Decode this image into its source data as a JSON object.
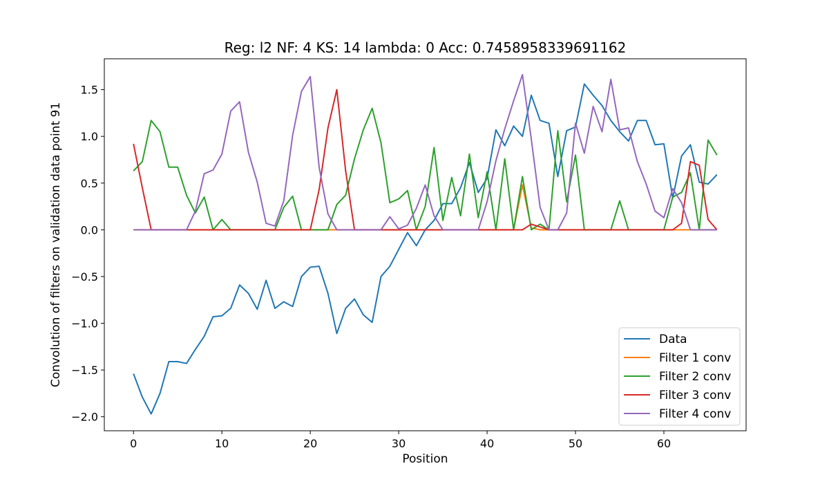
{
  "chart_data": {
    "type": "line",
    "title": "Reg: l2  NF: 4  KS: 14  lambda: 0 Acc: 0.7458958339691162",
    "xlabel": "Position",
    "ylabel": "Convolution of filters on validation data point 91",
    "xlim": [
      -3.3,
      69.3
    ],
    "ylim": [
      -2.15,
      1.83
    ],
    "xticks": [
      0,
      10,
      20,
      30,
      40,
      50,
      60
    ],
    "yticks": [
      -2.0,
      -1.5,
      -1.0,
      -0.5,
      0.0,
      0.5,
      1.0,
      1.5
    ],
    "ytick_labels": [
      "−2.0",
      "−1.5",
      "−1.0",
      "−0.5",
      "0.0",
      "0.5",
      "1.0",
      "1.5"
    ],
    "grid": false,
    "legend_position": "lower-right",
    "series": [
      {
        "name": "Data",
        "color": "#1f77b4",
        "values": [
          -1.54,
          -1.79,
          -1.97,
          -1.75,
          -1.41,
          -1.41,
          -1.43,
          -1.28,
          -1.14,
          -0.93,
          -0.92,
          -0.84,
          -0.59,
          -0.68,
          -0.85,
          -0.54,
          -0.84,
          -0.77,
          -0.82,
          -0.5,
          -0.4,
          -0.39,
          -0.68,
          -1.11,
          -0.84,
          -0.74,
          -0.91,
          -0.99,
          -0.5,
          -0.39,
          -0.21,
          -0.03,
          -0.17,
          0.0,
          0.1,
          0.28,
          0.28,
          0.45,
          0.72,
          0.4,
          0.55,
          1.07,
          0.9,
          1.11,
          1.0,
          1.44,
          1.17,
          1.14,
          0.57,
          1.06,
          1.1,
          1.56,
          1.44,
          1.33,
          1.17,
          1.05,
          0.95,
          1.17,
          1.17,
          0.91,
          0.92,
          0.34,
          0.79,
          0.91,
          0.51,
          0.49,
          0.59
        ]
      },
      {
        "name": "Filter 1 conv",
        "color": "#ff7f0e",
        "values": [
          0,
          0,
          0,
          0,
          0,
          0,
          0,
          0,
          0,
          0,
          0,
          0,
          0,
          0,
          0,
          0,
          0,
          0,
          0,
          0,
          0,
          0,
          0,
          0,
          0,
          0,
          0,
          0,
          0,
          0,
          0,
          0,
          0,
          0,
          0,
          0,
          0,
          0,
          0,
          0,
          0,
          0,
          0,
          0,
          0.48,
          0.02,
          0,
          0,
          0,
          0,
          0,
          0,
          0,
          0,
          0,
          0,
          0,
          0,
          0,
          0,
          0,
          0,
          0,
          0,
          0,
          0,
          0
        ]
      },
      {
        "name": "Filter 2 conv",
        "color": "#2ca02c",
        "values": [
          0.63,
          0.73,
          1.17,
          1.05,
          0.67,
          0.67,
          0.37,
          0.18,
          0.35,
          0,
          0.11,
          0,
          0,
          0,
          0,
          0,
          0,
          0.24,
          0.36,
          0,
          0,
          0,
          0,
          0.27,
          0.37,
          0.76,
          1.07,
          1.3,
          0.93,
          0.29,
          0.33,
          0.42,
          0,
          0.25,
          0.88,
          0.1,
          0.56,
          0.15,
          0.81,
          0.13,
          0.62,
          0,
          0.76,
          0,
          0.57,
          0,
          0.06,
          0,
          1.06,
          0.3,
          0.8,
          0,
          0,
          0,
          0,
          0.31,
          0,
          0,
          0,
          0,
          0,
          0.35,
          0.4,
          0.61,
          0,
          0.96,
          0.8
        ]
      },
      {
        "name": "Filter 3 conv",
        "color": "#d62728",
        "values": [
          0.92,
          0.45,
          0,
          0,
          0,
          0,
          0,
          0,
          0,
          0,
          0,
          0,
          0,
          0,
          0,
          0,
          0,
          0,
          0,
          0,
          0,
          0.43,
          1.09,
          1.5,
          0.63,
          0,
          0,
          0,
          0,
          0,
          0,
          0,
          0,
          0,
          0,
          0,
          0,
          0,
          0,
          0,
          0,
          0,
          0,
          0,
          0,
          0.06,
          0.03,
          0,
          0,
          0,
          0,
          0,
          0,
          0,
          0,
          0,
          0,
          0,
          0,
          0,
          0,
          0,
          0.07,
          0.73,
          0.69,
          0.11,
          0
        ]
      },
      {
        "name": "Filter 4 conv",
        "color": "#9467bd",
        "values": [
          0,
          0,
          0,
          0,
          0,
          0,
          0,
          0.2,
          0.6,
          0.64,
          0.81,
          1.27,
          1.37,
          0.83,
          0.51,
          0.07,
          0.04,
          0.31,
          1.01,
          1.48,
          1.64,
          0.67,
          0.17,
          0,
          0,
          0,
          0,
          0,
          0,
          0.14,
          0.01,
          0.05,
          0.23,
          0.48,
          0.15,
          0,
          0,
          0,
          0,
          0,
          0.3,
          0.74,
          1.08,
          1.38,
          1.66,
          0.97,
          0.24,
          0,
          0,
          0.18,
          1.14,
          0.82,
          1.32,
          1.05,
          1.61,
          1.07,
          1.09,
          0.73,
          0.49,
          0.2,
          0.13,
          0.44,
          0.29,
          0,
          0,
          0,
          0
        ]
      }
    ]
  }
}
